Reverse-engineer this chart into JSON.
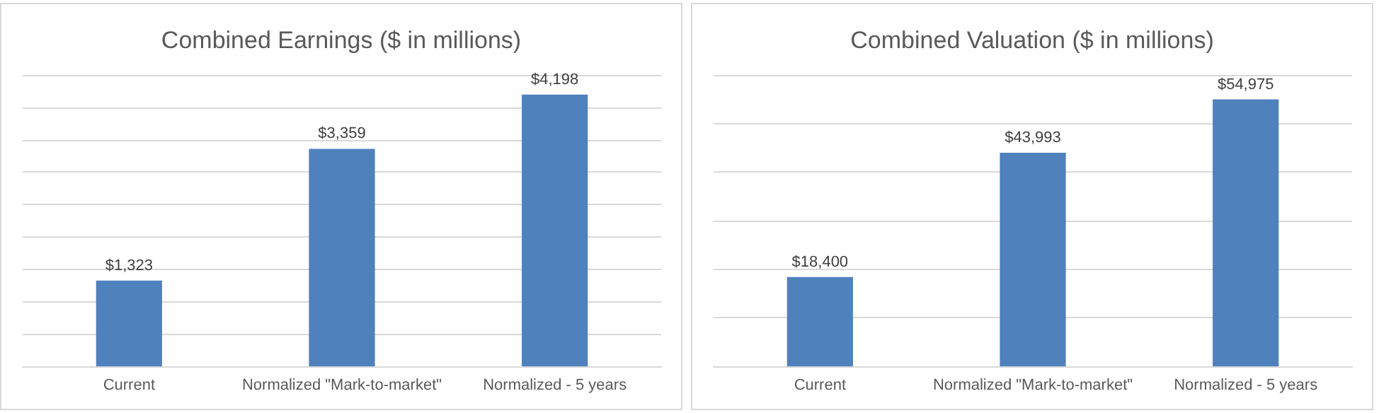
{
  "chart_data": [
    {
      "type": "bar",
      "title": "Combined Earnings ($ in millions)",
      "categories": [
        "Current",
        "Normalized \"Mark-to-market\"",
        "Normalized - 5 years"
      ],
      "values": [
        1323,
        3359,
        4198
      ],
      "color": "#4f81bd",
      "value_labels": [
        "$1,323",
        "$3,359",
        "$4,198"
      ],
      "ylim": [
        0,
        4500
      ],
      "yticks": [
        {
          "value": 0,
          "label": null
        },
        {
          "value": 500,
          "label": null
        },
        {
          "value": 1000,
          "label": null
        },
        {
          "value": 1500,
          "label": null
        },
        {
          "value": 2000,
          "label": null
        },
        {
          "value": 2500,
          "label": null
        },
        {
          "value": 3000,
          "label": null
        },
        {
          "value": 3500,
          "label": null
        },
        {
          "value": 4000,
          "label": null
        },
        {
          "value": 4500,
          "label": null
        }
      ],
      "tick_labels": "x",
      "grid": "y"
    },
    {
      "type": "bar",
      "title": "Combined Valuation ($ in millions)",
      "categories": [
        "Current",
        "Normalized \"Mark-to-market\"",
        "Normalized - 5 years"
      ],
      "values": [
        18400,
        43993,
        54975
      ],
      "color": "#4f81bd",
      "value_labels": [
        "$18,400",
        "$43,993",
        "$54,975"
      ],
      "ylim": [
        0,
        60000
      ],
      "yticks": [
        {
          "value": 0,
          "label": null
        },
        {
          "value": 10000,
          "label": null
        },
        {
          "value": 20000,
          "label": null
        },
        {
          "value": 30000,
          "label": null
        },
        {
          "value": 40000,
          "label": null
        },
        {
          "value": 50000,
          "label": null
        },
        {
          "value": 60000,
          "label": null
        }
      ],
      "tick_labels": "x",
      "grid": "y"
    }
  ]
}
